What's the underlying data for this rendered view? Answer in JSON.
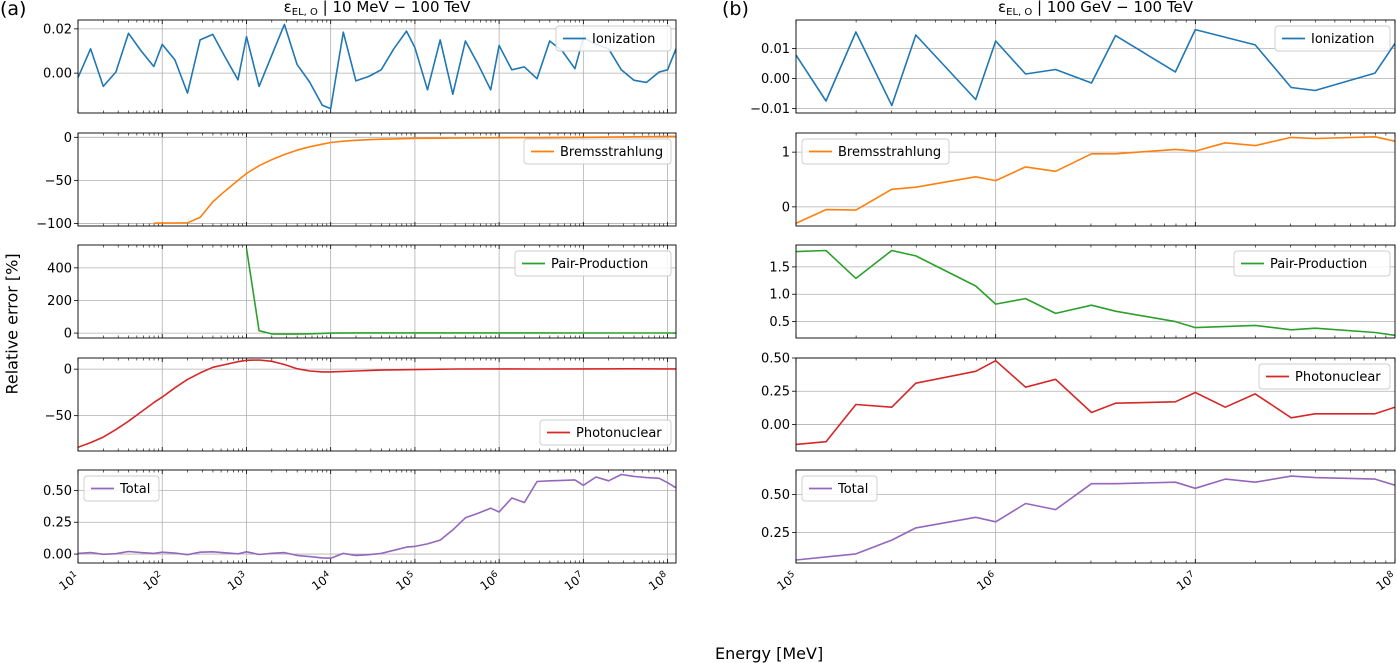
{
  "panel_labels": [
    "(a)",
    "(b)"
  ],
  "shared_ylabel": "Relative error [%]",
  "shared_xlabel": "Energy [MeV]",
  "colors": {
    "Ionization": "#1f77b4",
    "Bremsstrahlung": "#ff7f0e",
    "Pair-Production": "#2ca02c",
    "Photonuclear": "#d62728",
    "Total": "#9467bd",
    "grid": "#b0b0b0"
  },
  "chart_data": [
    {
      "type": "line",
      "panel": "(a)",
      "title": "ε_EL,O | 10 MeV − 100 TeV",
      "title_main": "ε",
      "title_sub": "EL, O",
      "title_rest": " | 10 MeV − 100 TeV",
      "xscale": "log",
      "xlim_exp": [
        1,
        8.1
      ],
      "xtick_exponents": [
        1,
        2,
        3,
        4,
        5,
        6,
        7,
        8
      ],
      "xlabel": "Energy [MeV]",
      "subplots": [
        {
          "name": "Ionization",
          "legend": "top-right",
          "ylim": [
            -0.018,
            0.024
          ],
          "yticks": [
            0.0,
            0.02
          ],
          "ytick_labels": [
            "0.00",
            "0.02"
          ],
          "x_exp": [
            1,
            1.15,
            1.3,
            1.45,
            1.6,
            1.75,
            1.9,
            2.0,
            2.15,
            2.3,
            2.45,
            2.6,
            2.75,
            2.9,
            3.0,
            3.15,
            3.3,
            3.45,
            3.6,
            3.75,
            3.9,
            4.0,
            4.15,
            4.3,
            4.45,
            4.6,
            4.75,
            4.9,
            5.0,
            5.15,
            5.3,
            5.45,
            5.6,
            5.75,
            5.9,
            6.0,
            6.15,
            6.3,
            6.45,
            6.6,
            6.75,
            6.9,
            7.0,
            7.15,
            7.3,
            7.45,
            7.6,
            7.75,
            7.9,
            8.0,
            8.1
          ],
          "values": [
            -0.002,
            0.011,
            -0.006,
            0.0005,
            0.018,
            0.01,
            0.003,
            0.013,
            0.006,
            -0.009,
            0.015,
            0.0175,
            0.007,
            -0.003,
            0.0165,
            -0.006,
            0.008,
            0.022,
            0.004,
            -0.004,
            -0.0145,
            -0.016,
            0.0185,
            -0.0035,
            -0.0015,
            0.0015,
            0.011,
            0.019,
            0.0115,
            -0.0075,
            0.015,
            -0.0095,
            0.0145,
            0.004,
            -0.0075,
            0.0125,
            0.0015,
            0.0028,
            -0.0025,
            0.0145,
            0.01,
            0.002,
            0.016,
            0.013,
            0.011,
            0.0015,
            -0.0032,
            -0.0042,
            0.0005,
            0.0015,
            0.011
          ]
        },
        {
          "name": "Bremsstrahlung",
          "legend": "top-right",
          "ylim": [
            -103,
            5
          ],
          "yticks": [
            -100,
            -50,
            0
          ],
          "ytick_labels": [
            "−100",
            "−50",
            "0"
          ],
          "x_exp": [
            1.9,
            2.0,
            2.15,
            2.3,
            2.45,
            2.6,
            2.75,
            2.9,
            3.0,
            3.15,
            3.3,
            3.45,
            3.6,
            3.75,
            3.9,
            4.0,
            4.15,
            4.3,
            4.45,
            4.6,
            4.75,
            4.9,
            5.0,
            5.3,
            5.6,
            5.9,
            6.0,
            6.5,
            7.0,
            7.5,
            8.0,
            8.1
          ],
          "values": [
            -99.7,
            -99.6,
            -99.5,
            -99.3,
            -93,
            -75,
            -62,
            -50,
            -42,
            -33,
            -26,
            -20,
            -15,
            -11,
            -8,
            -6,
            -4.5,
            -3.5,
            -2.8,
            -2.2,
            -1.8,
            -1.5,
            -1.2,
            -1,
            -0.8,
            -0.6,
            -0.5,
            -0.3,
            0.0,
            0.5,
            1.0,
            1.1
          ]
        },
        {
          "name": "Pair-Production",
          "legend": "top-right",
          "ylim": [
            -30,
            540
          ],
          "yticks": [
            0,
            200,
            400
          ],
          "ytick_labels": [
            "0",
            "200",
            "400"
          ],
          "x_exp": [
            3.0,
            3.15,
            3.3,
            3.5,
            3.7,
            3.9,
            4.0,
            4.3,
            4.6,
            5.0,
            5.5,
            6.0,
            6.5,
            7.0,
            7.5,
            8.0,
            8.1
          ],
          "values": [
            520,
            15,
            -5,
            -6,
            -5,
            -2,
            0,
            1,
            1.5,
            1.5,
            1.5,
            1.2,
            1.0,
            0.8,
            0.6,
            0.4,
            0.3
          ]
        },
        {
          "name": "Photonuclear",
          "legend": "bottom-right",
          "ylim": [
            -88,
            12
          ],
          "yticks": [
            -50,
            0
          ],
          "ytick_labels": [
            "−50",
            "0"
          ],
          "x_exp": [
            1.0,
            1.15,
            1.3,
            1.45,
            1.6,
            1.75,
            1.9,
            2.0,
            2.15,
            2.3,
            2.45,
            2.6,
            2.75,
            2.9,
            3.0,
            3.15,
            3.3,
            3.45,
            3.6,
            3.75,
            3.9,
            4.0,
            4.3,
            4.6,
            5.0,
            5.5,
            6.0,
            6.5,
            7.0,
            7.5,
            8.0,
            8.1
          ],
          "values": [
            -84,
            -79,
            -73,
            -65,
            -56,
            -46,
            -36,
            -30,
            -20,
            -11,
            -4,
            2,
            5,
            8,
            9.5,
            9.8,
            8.5,
            5,
            0.5,
            -2,
            -3,
            -3,
            -2,
            -1,
            -0.5,
            0.2,
            0.3,
            0.2,
            0.3,
            0.4,
            0.3,
            0.3
          ]
        },
        {
          "name": "Total",
          "legend": "top-left",
          "ylim": [
            -0.07,
            0.66
          ],
          "yticks": [
            0.0,
            0.25,
            0.5
          ],
          "ytick_labels": [
            "0.00",
            "0.25",
            "0.50"
          ],
          "x_exp": [
            1.0,
            1.15,
            1.3,
            1.45,
            1.6,
            1.75,
            1.9,
            2.0,
            2.15,
            2.3,
            2.45,
            2.6,
            2.75,
            2.9,
            3.0,
            3.15,
            3.3,
            3.45,
            3.6,
            3.75,
            3.9,
            4.0,
            4.15,
            4.3,
            4.45,
            4.6,
            4.75,
            4.9,
            5.0,
            5.15,
            5.3,
            5.45,
            5.6,
            5.75,
            5.9,
            6.0,
            6.15,
            6.3,
            6.45,
            6.6,
            6.75,
            6.9,
            7.0,
            7.15,
            7.3,
            7.45,
            7.6,
            7.75,
            7.9,
            8.0,
            8.1
          ],
          "values": [
            0.005,
            0.012,
            -0.002,
            0.003,
            0.02,
            0.012,
            0.005,
            0.015,
            0.008,
            -0.005,
            0.015,
            0.018,
            0.01,
            0.002,
            0.018,
            -0.003,
            0.006,
            0.012,
            -0.01,
            -0.02,
            -0.03,
            -0.032,
            0.005,
            -0.01,
            -0.005,
            0.005,
            0.03,
            0.055,
            0.06,
            0.08,
            0.11,
            0.19,
            0.285,
            0.32,
            0.36,
            0.33,
            0.44,
            0.405,
            0.57,
            0.575,
            0.578,
            0.582,
            0.54,
            0.605,
            0.575,
            0.625,
            0.61,
            0.6,
            0.595,
            0.56,
            0.52
          ]
        }
      ]
    },
    {
      "type": "line",
      "panel": "(b)",
      "title": "ε_EL,O | 100 GeV − 100 TeV",
      "title_main": "ε",
      "title_sub": "EL, O",
      "title_rest": " | 100 GeV − 100 TeV",
      "xscale": "log",
      "xlim_exp": [
        5,
        8
      ],
      "xtick_exponents": [
        5,
        6,
        7,
        8
      ],
      "xlabel": "Energy [MeV]",
      "subplots": [
        {
          "name": "Ionization",
          "legend": "top-right",
          "ylim": [
            -0.0115,
            0.0195
          ],
          "yticks": [
            -0.01,
            0.0,
            0.01
          ],
          "ytick_labels": [
            "−0.01",
            "0.00",
            "0.01"
          ],
          "x_exp": [
            5.0,
            5.15,
            5.3,
            5.48,
            5.6,
            5.9,
            6.0,
            6.15,
            6.3,
            6.48,
            6.6,
            6.9,
            7.0,
            7.3,
            7.48,
            7.6,
            7.9,
            8.0
          ],
          "values": [
            0.0078,
            -0.0075,
            0.0155,
            -0.009,
            0.0145,
            -0.007,
            0.0125,
            0.0015,
            0.003,
            -0.0015,
            0.0143,
            0.0022,
            0.0163,
            0.0112,
            -0.003,
            -0.004,
            0.0018,
            0.0117
          ]
        },
        {
          "name": "Bremsstrahlung",
          "legend": "top-left",
          "ylim": [
            -0.35,
            1.35
          ],
          "yticks": [
            0,
            1
          ],
          "ytick_labels": [
            "0",
            "1"
          ],
          "x_exp": [
            5.0,
            5.15,
            5.3,
            5.48,
            5.6,
            5.9,
            6.0,
            6.15,
            6.3,
            6.48,
            6.6,
            6.9,
            7.0,
            7.15,
            7.3,
            7.48,
            7.6,
            7.9,
            8.0
          ],
          "values": [
            -0.3,
            -0.05,
            -0.06,
            0.32,
            0.36,
            0.55,
            0.48,
            0.73,
            0.65,
            0.97,
            0.97,
            1.05,
            1.02,
            1.17,
            1.12,
            1.27,
            1.25,
            1.28,
            1.2
          ]
        },
        {
          "name": "Pair-Production",
          "legend": "top-right",
          "ylim": [
            0.2,
            1.9
          ],
          "yticks": [
            0.5,
            1.0,
            1.5
          ],
          "ytick_labels": [
            "0.5",
            "1.0",
            "1.5"
          ],
          "x_exp": [
            5.0,
            5.15,
            5.3,
            5.48,
            5.6,
            5.9,
            6.0,
            6.15,
            6.3,
            6.48,
            6.6,
            6.9,
            7.0,
            7.3,
            7.48,
            7.6,
            7.9,
            8.0
          ],
          "values": [
            1.78,
            1.8,
            1.29,
            1.8,
            1.7,
            1.15,
            0.82,
            0.92,
            0.65,
            0.8,
            0.69,
            0.5,
            0.39,
            0.43,
            0.35,
            0.38,
            0.3,
            0.25
          ]
        },
        {
          "name": "Photonuclear",
          "legend": "top-right",
          "ylim": [
            -0.2,
            0.5
          ],
          "yticks": [
            0.0,
            0.25,
            0.5
          ],
          "ytick_labels": [
            "0.00",
            "0.25",
            "0.50"
          ],
          "x_exp": [
            5.0,
            5.15,
            5.3,
            5.48,
            5.6,
            5.9,
            6.0,
            6.15,
            6.3,
            6.48,
            6.6,
            6.9,
            7.0,
            7.15,
            7.3,
            7.48,
            7.6,
            7.9,
            8.0
          ],
          "values": [
            -0.15,
            -0.13,
            0.15,
            0.13,
            0.31,
            0.4,
            0.48,
            0.28,
            0.34,
            0.09,
            0.16,
            0.17,
            0.24,
            0.13,
            0.23,
            0.05,
            0.08,
            0.08,
            0.13
          ]
        },
        {
          "name": "Total",
          "legend": "top-left",
          "ylim": [
            0.05,
            0.66
          ],
          "yticks": [
            0.25,
            0.5
          ],
          "ytick_labels": [
            "0.25",
            "0.50"
          ],
          "x_exp": [
            5.0,
            5.15,
            5.3,
            5.48,
            5.6,
            5.9,
            6.0,
            6.15,
            6.3,
            6.48,
            6.6,
            6.9,
            7.0,
            7.15,
            7.3,
            7.48,
            7.6,
            7.9,
            8.0
          ],
          "values": [
            0.07,
            0.09,
            0.11,
            0.2,
            0.28,
            0.35,
            0.32,
            0.44,
            0.4,
            0.57,
            0.57,
            0.58,
            0.54,
            0.6,
            0.58,
            0.62,
            0.61,
            0.6,
            0.56
          ]
        }
      ]
    }
  ]
}
